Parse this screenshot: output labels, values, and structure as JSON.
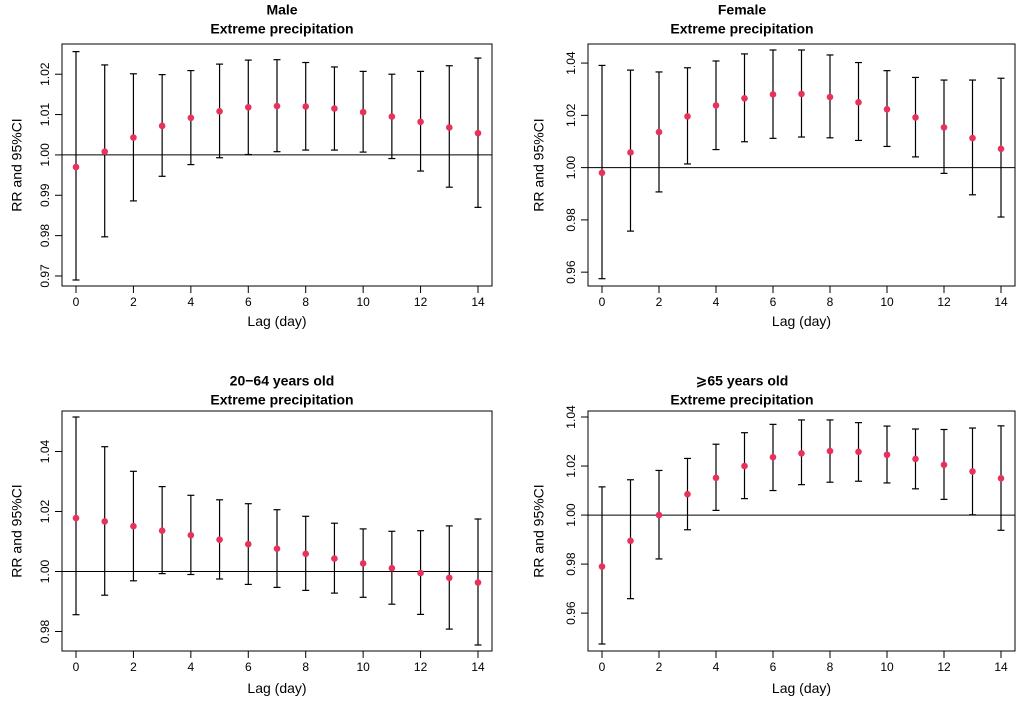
{
  "figure": {
    "description_free": true
  },
  "chart_data": [
    {
      "type": "scatter",
      "title": "Male",
      "subtitle": "Extreme precipitation",
      "xlabel": "Lag (day)",
      "ylabel": "RR and 95%CI",
      "xlim": [
        0,
        14
      ],
      "ylim": [
        0.969,
        1.026
      ],
      "xticks": [
        0,
        2,
        4,
        6,
        8,
        10,
        12,
        14
      ],
      "yticks": [
        0.97,
        0.98,
        0.99,
        1.0,
        1.01,
        1.02
      ],
      "ytick_labels": [
        "0.97",
        "0.98",
        "0.99",
        "1.00",
        "1.01",
        "1.02"
      ],
      "xtick_labels": [
        "0",
        "2",
        "4",
        "6",
        "8",
        "10",
        "12",
        "14"
      ],
      "reference_line": 1.0,
      "x": [
        0,
        1,
        2,
        3,
        4,
        5,
        6,
        7,
        8,
        9,
        10,
        11,
        12,
        13,
        14
      ],
      "rr": [
        0.997,
        1.0008,
        1.0043,
        1.0072,
        1.0092,
        1.0108,
        1.0118,
        1.0121,
        1.012,
        1.0115,
        1.0106,
        1.0095,
        1.0082,
        1.0068,
        1.0054
      ],
      "lower": [
        0.969,
        0.9797,
        0.9886,
        0.9947,
        0.9976,
        0.9993,
        1.0001,
        1.0008,
        1.0012,
        1.0012,
        1.0007,
        0.9991,
        0.996,
        0.992,
        0.987
      ],
      "upper": [
        1.0256,
        1.0223,
        1.0201,
        1.0199,
        1.0209,
        1.0225,
        1.0235,
        1.0236,
        1.0229,
        1.0218,
        1.0207,
        1.02,
        1.0207,
        1.0221,
        1.024
      ]
    },
    {
      "type": "scatter",
      "title": "Female",
      "subtitle": "Extreme precipitation",
      "xlabel": "Lag (day)",
      "ylabel": "RR and 95%CI",
      "xlim": [
        0,
        14
      ],
      "ylim": [
        0.957,
        1.045
      ],
      "xticks": [
        0,
        2,
        4,
        6,
        8,
        10,
        12,
        14
      ],
      "yticks": [
        0.96,
        0.98,
        1.0,
        1.02,
        1.04
      ],
      "ytick_labels": [
        "0.96",
        "0.98",
        "1.00",
        "1.02",
        "1.04"
      ],
      "xtick_labels": [
        "0",
        "2",
        "4",
        "6",
        "8",
        "10",
        "12",
        "14"
      ],
      "reference_line": 1.0,
      "x": [
        0,
        1,
        2,
        3,
        4,
        5,
        6,
        7,
        8,
        9,
        10,
        11,
        12,
        13,
        14
      ],
      "rr": [
        0.998,
        1.0058,
        1.0136,
        1.0196,
        1.0238,
        1.0265,
        1.028,
        1.0282,
        1.027,
        1.025,
        1.0223,
        1.0192,
        1.0154,
        1.0113,
        1.0072
      ],
      "lower": [
        0.9575,
        0.9757,
        0.9907,
        1.0014,
        1.0069,
        1.0099,
        1.0112,
        1.0117,
        1.0114,
        1.0104,
        1.0081,
        1.0041,
        0.9978,
        0.9896,
        0.9811
      ],
      "upper": [
        1.0391,
        1.0373,
        1.0366,
        1.0382,
        1.0408,
        1.0435,
        1.045,
        1.045,
        1.0431,
        1.0402,
        1.0371,
        1.0345,
        1.0335,
        1.0335,
        1.0342
      ]
    },
    {
      "type": "scatter",
      "title": "20−64 years old",
      "subtitle": "Extreme precipitation",
      "xlabel": "Lag (day)",
      "ylabel": "RR and 95%CI",
      "xlim": [
        0,
        14
      ],
      "ylim": [
        0.9755,
        1.0515
      ],
      "xticks": [
        0,
        2,
        4,
        6,
        8,
        10,
        12,
        14
      ],
      "yticks": [
        0.98,
        1.0,
        1.02,
        1.04
      ],
      "ytick_labels": [
        "0.98",
        "1.00",
        "1.02",
        "1.04"
      ],
      "xtick_labels": [
        "0",
        "2",
        "4",
        "6",
        "8",
        "10",
        "12",
        "14"
      ],
      "reference_line": 1.0,
      "x": [
        0,
        1,
        2,
        3,
        4,
        5,
        6,
        7,
        8,
        9,
        10,
        11,
        12,
        13,
        14
      ],
      "rr": [
        1.0178,
        1.0167,
        1.0151,
        1.0136,
        1.0121,
        1.0106,
        1.0091,
        1.0076,
        1.0059,
        1.0043,
        1.0027,
        1.0011,
        0.9995,
        0.9979,
        0.9963
      ],
      "lower": [
        0.9856,
        0.9921,
        0.9969,
        0.9993,
        0.999,
        0.9975,
        0.9957,
        0.9947,
        0.9937,
        0.9928,
        0.9914,
        0.9891,
        0.9857,
        0.9808,
        0.9755
      ],
      "upper": [
        1.0515,
        1.0416,
        1.0334,
        1.0283,
        1.0254,
        1.0239,
        1.0226,
        1.0206,
        1.0184,
        1.0161,
        1.0142,
        1.0134,
        1.0136,
        1.0152,
        1.0175
      ]
    },
    {
      "type": "scatter",
      "title": "⩾65 years old",
      "subtitle": "Extreme precipitation",
      "xlabel": "Lag (day)",
      "ylabel": "RR and 95%CI",
      "xlim": [
        0,
        14
      ],
      "ylim": [
        0.947,
        1.04
      ],
      "xticks": [
        0,
        2,
        4,
        6,
        8,
        10,
        12,
        14
      ],
      "yticks": [
        0.96,
        0.98,
        1.0,
        1.02,
        1.04
      ],
      "ytick_labels": [
        "0.96",
        "0.98",
        "1.00",
        "1.02",
        "1.04"
      ],
      "xtick_labels": [
        "0",
        "2",
        "4",
        "6",
        "8",
        "10",
        "12",
        "14"
      ],
      "reference_line": 1.0,
      "x": [
        0,
        1,
        2,
        3,
        4,
        5,
        6,
        7,
        8,
        9,
        10,
        11,
        12,
        13,
        14
      ],
      "rr": [
        0.979,
        0.9895,
        1.0,
        1.0085,
        1.0152,
        1.02,
        1.0236,
        1.0252,
        1.0261,
        1.0258,
        1.0246,
        1.0229,
        1.0205,
        1.0178,
        1.015
      ],
      "lower": [
        0.9474,
        0.9659,
        0.9821,
        0.994,
        1.0019,
        1.0067,
        1.01,
        1.0124,
        1.0134,
        1.0138,
        1.0131,
        1.0107,
        1.0064,
        1.0001,
        0.9938
      ],
      "upper": [
        1.0115,
        1.0144,
        1.0182,
        1.0231,
        1.0289,
        1.0336,
        1.037,
        1.0388,
        1.0388,
        1.0377,
        1.0363,
        1.0351,
        1.0349,
        1.0355,
        1.0364
      ]
    }
  ]
}
